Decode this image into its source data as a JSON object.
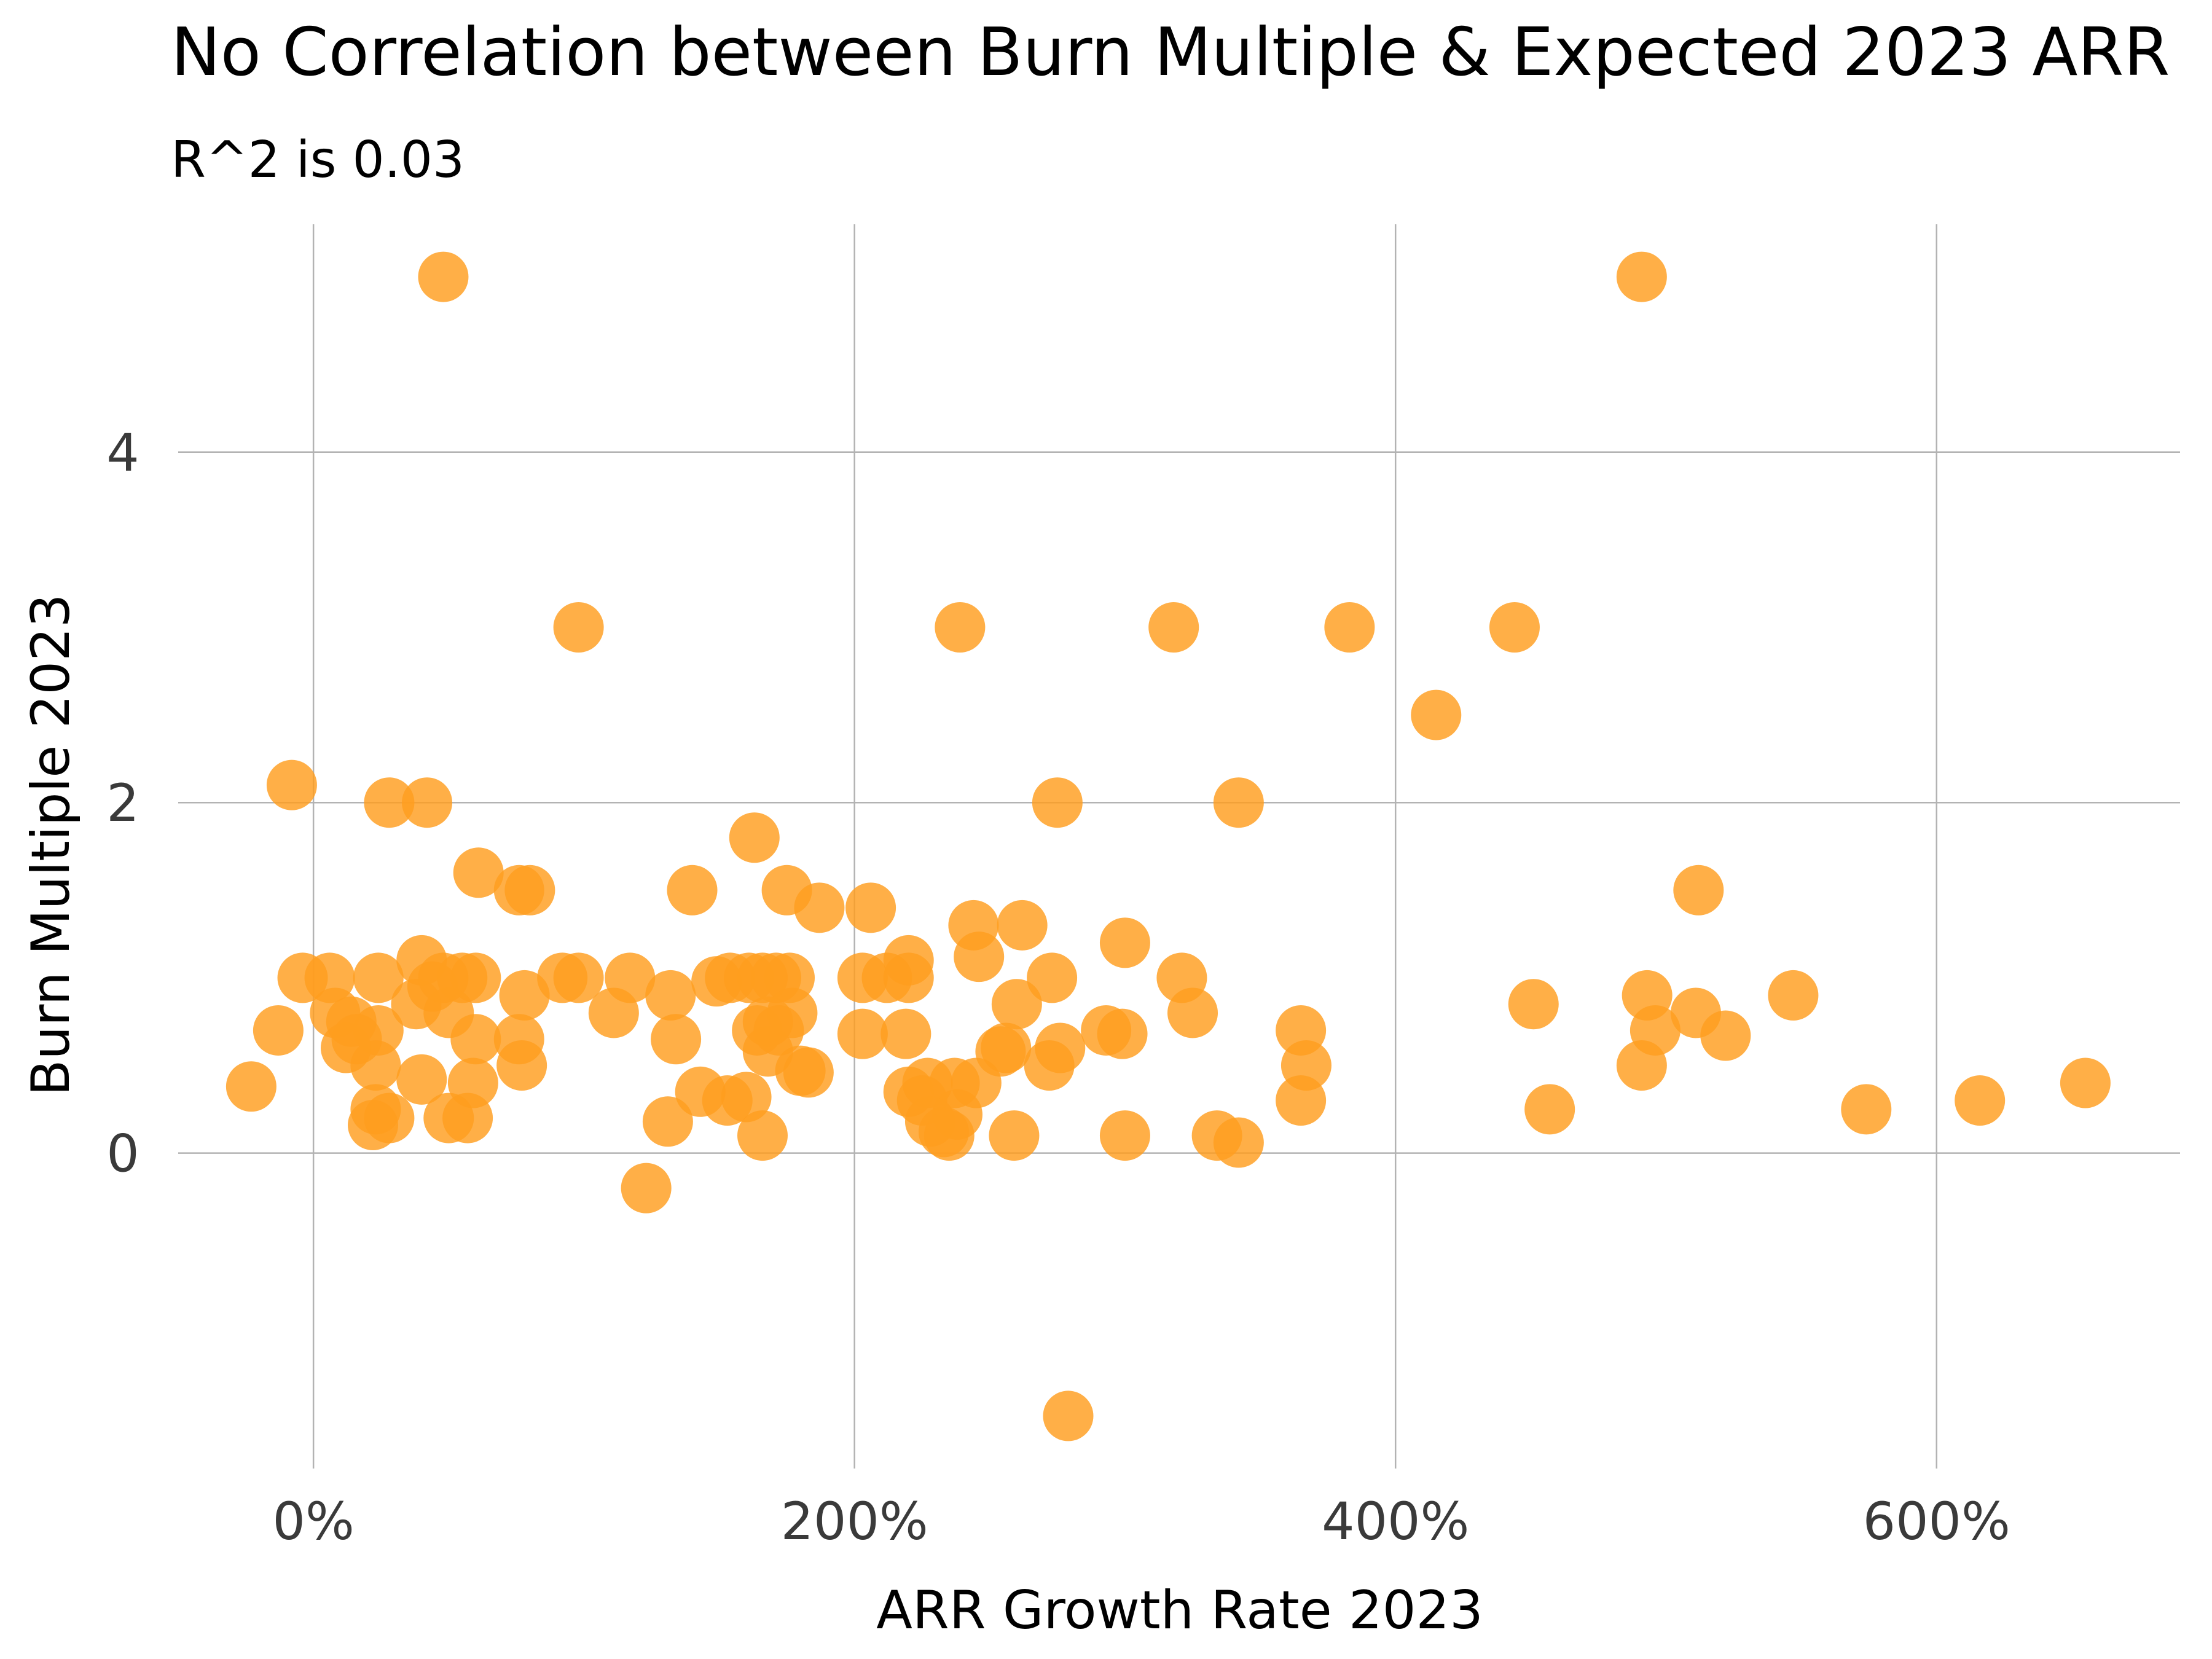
{
  "chart_data": {
    "type": "scatter",
    "title": "No Correlation between Burn Multiple & Expected 2023 ARR",
    "subtitle": "R^2 is 0.03",
    "xlabel": "ARR Growth Rate 2023",
    "ylabel": "Burn Multiple 2023",
    "xlim": [
      -50,
      690
    ],
    "ylim": [
      -1.8,
      5.3
    ],
    "x_ticks": [
      0,
      200,
      400,
      600
    ],
    "x_tick_labels": [
      "0%",
      "200%",
      "400%",
      "600%"
    ],
    "y_ticks": [
      0,
      2,
      4
    ],
    "y_tick_labels": [
      "0",
      "2",
      "4"
    ],
    "grid": true,
    "legend": "none",
    "point_color": "#FF9D1E",
    "point_opacity": 0.82,
    "points": [
      {
        "x": 48,
        "y": 5.0
      },
      {
        "x": 491,
        "y": 5.0
      },
      {
        "x": 98,
        "y": 3.0
      },
      {
        "x": 239,
        "y": 3.0
      },
      {
        "x": 318,
        "y": 3.0
      },
      {
        "x": 383,
        "y": 3.0
      },
      {
        "x": 444,
        "y": 3.0
      },
      {
        "x": 415,
        "y": 2.5
      },
      {
        "x": -8,
        "y": 2.1
      },
      {
        "x": 28,
        "y": 2.0
      },
      {
        "x": 42,
        "y": 2.0
      },
      {
        "x": 275,
        "y": 2.0
      },
      {
        "x": 342,
        "y": 2.0
      },
      {
        "x": 163,
        "y": 1.8
      },
      {
        "x": 61,
        "y": 1.6
      },
      {
        "x": 76,
        "y": 1.5
      },
      {
        "x": 80,
        "y": 1.5
      },
      {
        "x": 140,
        "y": 1.5
      },
      {
        "x": 175,
        "y": 1.5
      },
      {
        "x": 512,
        "y": 1.5
      },
      {
        "x": 187,
        "y": 1.4
      },
      {
        "x": 206,
        "y": 1.4
      },
      {
        "x": 244,
        "y": 1.3
      },
      {
        "x": 262,
        "y": 1.3
      },
      {
        "x": 220,
        "y": 1.1
      },
      {
        "x": 246,
        "y": 1.12
      },
      {
        "x": 300,
        "y": 1.2
      },
      {
        "x": -4,
        "y": 1.0
      },
      {
        "x": 6,
        "y": 1.0
      },
      {
        "x": 24,
        "y": 1.0
      },
      {
        "x": 40,
        "y": 1.1
      },
      {
        "x": 48,
        "y": 1.0
      },
      {
        "x": 55,
        "y": 1.0
      },
      {
        "x": 60,
        "y": 1.0
      },
      {
        "x": 92,
        "y": 1.0
      },
      {
        "x": 98,
        "y": 1.0
      },
      {
        "x": 117,
        "y": 1.0
      },
      {
        "x": 149,
        "y": 0.98
      },
      {
        "x": 154,
        "y": 1.0
      },
      {
        "x": 161,
        "y": 1.0
      },
      {
        "x": 166,
        "y": 1.0
      },
      {
        "x": 171,
        "y": 1.0
      },
      {
        "x": 176,
        "y": 1.0
      },
      {
        "x": 203,
        "y": 1.0
      },
      {
        "x": 212,
        "y": 1.0
      },
      {
        "x": 220,
        "y": 1.0
      },
      {
        "x": 273,
        "y": 1.0
      },
      {
        "x": 321,
        "y": 1.0
      },
      {
        "x": 78,
        "y": 0.9
      },
      {
        "x": 132,
        "y": 0.9
      },
      {
        "x": 38,
        "y": 0.85
      },
      {
        "x": 451,
        "y": 0.85
      },
      {
        "x": 493,
        "y": 0.9
      },
      {
        "x": 547,
        "y": 0.9
      },
      {
        "x": 8,
        "y": 0.8
      },
      {
        "x": 44,
        "y": 0.95
      },
      {
        "x": 50,
        "y": 0.8
      },
      {
        "x": 111,
        "y": 0.8
      },
      {
        "x": 177,
        "y": 0.8
      },
      {
        "x": 325,
        "y": 0.8
      },
      {
        "x": 511,
        "y": 0.8
      },
      {
        "x": -13,
        "y": 0.7
      },
      {
        "x": 14,
        "y": 0.75
      },
      {
        "x": 24,
        "y": 0.7
      },
      {
        "x": 164,
        "y": 0.7
      },
      {
        "x": 168,
        "y": 0.75
      },
      {
        "x": 219,
        "y": 0.68
      },
      {
        "x": 293,
        "y": 0.7
      },
      {
        "x": 365,
        "y": 0.7
      },
      {
        "x": 496,
        "y": 0.7
      },
      {
        "x": 16,
        "y": 0.65
      },
      {
        "x": 60,
        "y": 0.65
      },
      {
        "x": 76,
        "y": 0.65
      },
      {
        "x": 134,
        "y": 0.65
      },
      {
        "x": 203,
        "y": 0.68
      },
      {
        "x": 260,
        "y": 0.85
      },
      {
        "x": 256,
        "y": 0.6
      },
      {
        "x": 254,
        "y": 0.58
      },
      {
        "x": 276,
        "y": 0.6
      },
      {
        "x": 299,
        "y": 0.68
      },
      {
        "x": 522,
        "y": 0.67
      },
      {
        "x": 12,
        "y": 0.6
      },
      {
        "x": 168,
        "y": 0.58
      },
      {
        "x": 172,
        "y": 0.7
      },
      {
        "x": 23,
        "y": 0.5
      },
      {
        "x": 77,
        "y": 0.5
      },
      {
        "x": 183,
        "y": 0.46
      },
      {
        "x": 180,
        "y": 0.47
      },
      {
        "x": 272,
        "y": 0.5
      },
      {
        "x": 367,
        "y": 0.5
      },
      {
        "x": 491,
        "y": 0.5
      },
      {
        "x": -23,
        "y": 0.38
      },
      {
        "x": 40,
        "y": 0.42
      },
      {
        "x": 59,
        "y": 0.4
      },
      {
        "x": 143,
        "y": 0.35
      },
      {
        "x": 220,
        "y": 0.35
      },
      {
        "x": 227,
        "y": 0.4
      },
      {
        "x": 237,
        "y": 0.4
      },
      {
        "x": 245,
        "y": 0.4
      },
      {
        "x": 655,
        "y": 0.4
      },
      {
        "x": 23,
        "y": 0.25
      },
      {
        "x": 153,
        "y": 0.3
      },
      {
        "x": 160,
        "y": 0.32
      },
      {
        "x": 225,
        "y": 0.3
      },
      {
        "x": 365,
        "y": 0.3
      },
      {
        "x": 616,
        "y": 0.3
      },
      {
        "x": 457,
        "y": 0.25
      },
      {
        "x": 574,
        "y": 0.25
      },
      {
        "x": 238,
        "y": 0.22
      },
      {
        "x": 22,
        "y": 0.16
      },
      {
        "x": 28,
        "y": 0.2
      },
      {
        "x": 50,
        "y": 0.2
      },
      {
        "x": 57,
        "y": 0.2
      },
      {
        "x": 131,
        "y": 0.18
      },
      {
        "x": 228,
        "y": 0.18
      },
      {
        "x": 233,
        "y": 0.12
      },
      {
        "x": 166,
        "y": 0.1
      },
      {
        "x": 235,
        "y": 0.1
      },
      {
        "x": 259,
        "y": 0.1
      },
      {
        "x": 300,
        "y": 0.1
      },
      {
        "x": 334,
        "y": 0.1
      },
      {
        "x": 342,
        "y": 0.06
      },
      {
        "x": 123,
        "y": -0.2
      },
      {
        "x": 279,
        "y": -1.5
      }
    ]
  }
}
